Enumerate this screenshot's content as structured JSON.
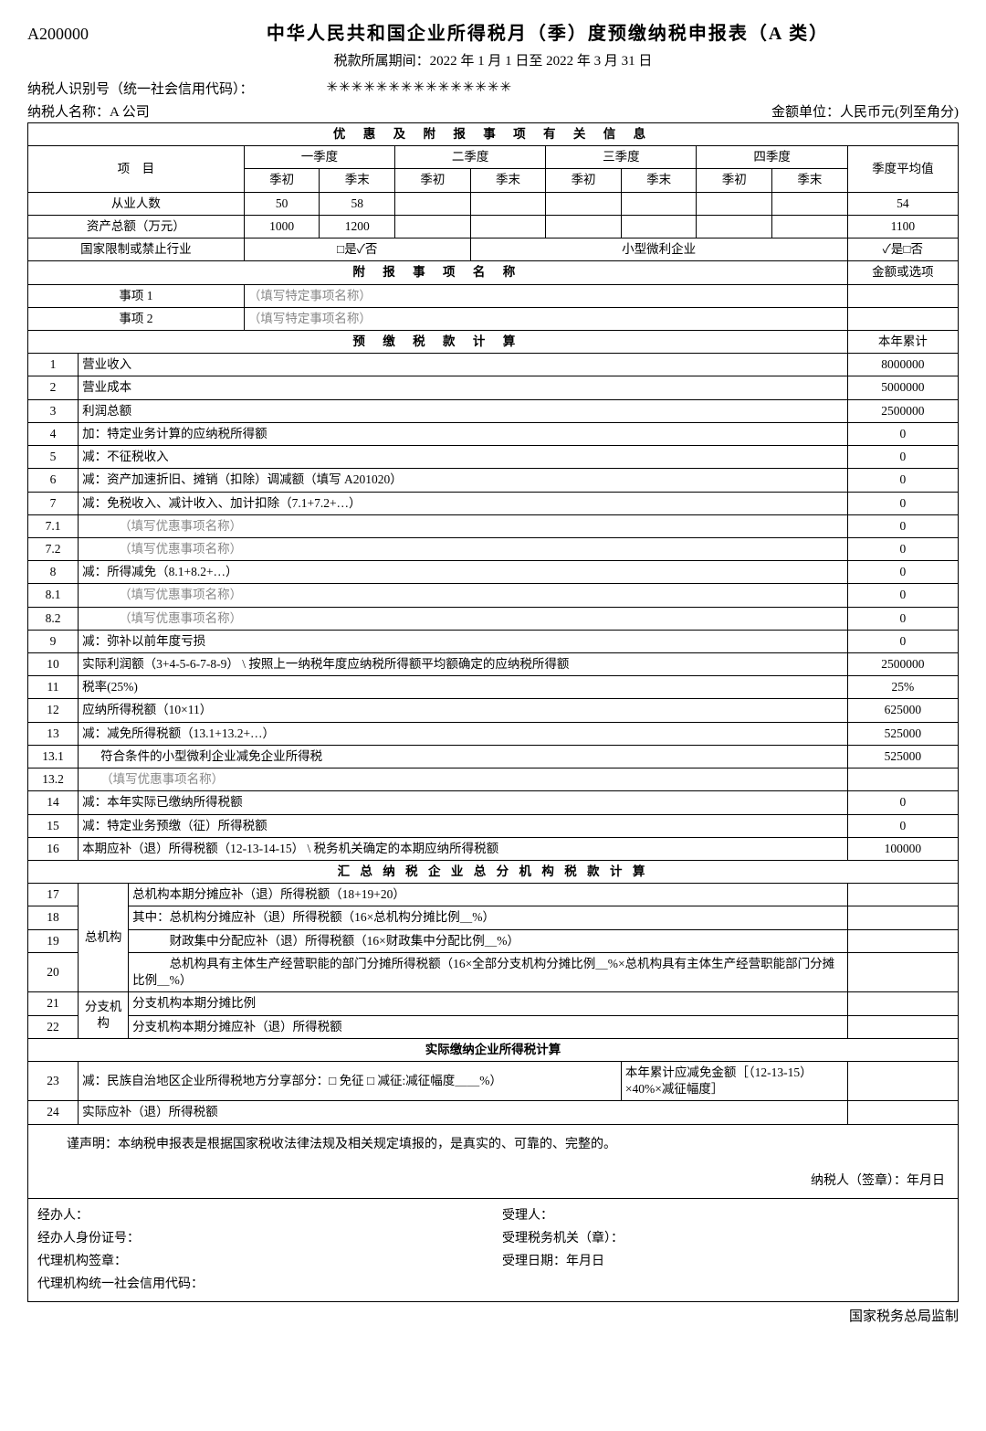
{
  "form_code": "A200000",
  "title": "中华人民共和国企业所得税月（季）度预缴纳税申报表（A 类）",
  "period": "税款所属期间：2022 年 1 月 1 日至 2022 年 3 月 31 日",
  "taxpayer_id_label": "纳税人识别号（统一社会信用代码）：",
  "taxpayer_id_stars": "✳✳✳✳✳✳✳✳✳✳✳✳✳✳✳",
  "taxpayer_name_label": "纳税人名称：A 公司",
  "amount_unit": "金额单位：人民币元(列至角分)",
  "section1_title": "优 惠 及 附 报 事 项 有 关 信 息",
  "headers": {
    "project": "项　目",
    "q1": "一季度",
    "q2": "二季度",
    "q3": "三季度",
    "q4": "四季度",
    "avg": "季度平均值",
    "qstart": "季初",
    "qend": "季末"
  },
  "rows_top": {
    "employees": {
      "label": "从业人数",
      "q1s": "50",
      "q1e": "58",
      "avg": "54"
    },
    "assets": {
      "label": "资产总额（万元）",
      "q1s": "1000",
      "q1e": "1200",
      "avg": "1100"
    },
    "restricted": {
      "label": "国家限制或禁止行业",
      "val": "□是✓否",
      "small_label": "小型微利企业",
      "small_val": "✓是□否"
    }
  },
  "attach_header": "附 报 事 项 名 称",
  "attach_amount": "金额或选项",
  "attach1_label": "事项 1",
  "attach2_label": "事项 2",
  "attach_placeholder": "（填写特定事项名称）",
  "calc_header": "预 缴 税 款 计 算",
  "ytd": "本年累计",
  "calc_rows": [
    {
      "n": "1",
      "label": "营业收入",
      "v": "8000000"
    },
    {
      "n": "2",
      "label": "营业成本",
      "v": "5000000"
    },
    {
      "n": "3",
      "label": "利润总额",
      "v": "2500000"
    },
    {
      "n": "4",
      "label": "加：特定业务计算的应纳税所得额",
      "v": "0"
    },
    {
      "n": "5",
      "label": "减：不征税收入",
      "v": "0"
    },
    {
      "n": "6",
      "label": "减：资产加速折旧、摊销（扣除）调减额（填写 A201020）",
      "v": "0"
    },
    {
      "n": "7",
      "label": "减：免税收入、减计收入、加计扣除（7.1+7.2+…）",
      "v": "0"
    },
    {
      "n": "7.1",
      "label": "（填写优惠事项名称）",
      "v": "0",
      "ph": true,
      "indent": 2
    },
    {
      "n": "7.2",
      "label": "（填写优惠事项名称）",
      "v": "0",
      "ph": true,
      "indent": 2
    },
    {
      "n": "8",
      "label": "减：所得减免（8.1+8.2+…）",
      "v": "0"
    },
    {
      "n": "8.1",
      "label": "（填写优惠事项名称）",
      "v": "0",
      "ph": true,
      "indent": 2
    },
    {
      "n": "8.2",
      "label": "（填写优惠事项名称）",
      "v": "0",
      "ph": true,
      "indent": 2
    },
    {
      "n": "9",
      "label": "减：弥补以前年度亏损",
      "v": "0"
    },
    {
      "n": "10",
      "label": "实际利润额（3+4-5-6-7-8-9） \\ 按照上一纳税年度应纳税所得额平均额确定的应纳税所得额",
      "v": "2500000"
    },
    {
      "n": "11",
      "label": "税率(25%)",
      "v": "25%"
    },
    {
      "n": "12",
      "label": "应纳所得税额（10×11）",
      "v": "625000"
    },
    {
      "n": "13",
      "label": "减：减免所得税额（13.1+13.2+…）",
      "v": "525000"
    },
    {
      "n": "13.1",
      "label": "符合条件的小型微利企业减免企业所得税",
      "v": "525000",
      "indent": 1
    },
    {
      "n": "13.2",
      "label": "（填写优惠事项名称）",
      "v": "",
      "ph": true,
      "indent": 1
    },
    {
      "n": "14",
      "label": "减：本年实际已缴纳所得税额",
      "v": "0"
    },
    {
      "n": "15",
      "label": "减：特定业务预缴（征）所得税额",
      "v": "0"
    },
    {
      "n": "16",
      "label": "本期应补（退）所得税额（12-13-14-15） \\ 税务机关确定的本期应纳所得税额",
      "v": "100000"
    }
  ],
  "branch_header": "汇 总 纳 税 企 业 总 分 机 构 税 款 计 算",
  "branch": {
    "hq": "总机构",
    "br": "分支机构",
    "r17": {
      "n": "17",
      "label": "总机构本期分摊应补（退）所得税额（18+19+20）"
    },
    "r18": {
      "n": "18",
      "label": "其中：总机构分摊应补（退）所得税额（16×总机构分摊比例＿%）"
    },
    "r19": {
      "n": "19",
      "label": "　　　财政集中分配应补（退）所得税额（16×财政集中分配比例＿%）"
    },
    "r20": {
      "n": "20",
      "label": "　　　总机构具有主体生产经营职能的部门分摊所得税额（16×全部分支机构分摊比例＿%×总机构具有主体生产经营职能部门分摊比例＿%）"
    },
    "r21": {
      "n": "21",
      "label": "分支机构本期分摊比例"
    },
    "r22": {
      "n": "22",
      "label": "分支机构本期分摊应补（退）所得税额"
    }
  },
  "actual_header": "实际缴纳企业所得税计算",
  "r23": {
    "n": "23",
    "label": "减：民族自治地区企业所得税地方分享部分：□ 免征 □ 减征:减征幅度＿＿%）",
    "right": "本年累计应减免金额［（12-13-15）×40%×减征幅度］"
  },
  "r24": {
    "n": "24",
    "label": "实际应补（退）所得税额"
  },
  "declaration": "谨声明：本纳税申报表是根据国家税收法律法规及相关规定填报的，是真实的、可靠的、完整的。",
  "sign": "纳税人（签章）：年月日",
  "footer": {
    "agent": "经办人：",
    "agent_id": "经办人身份证号：",
    "agency_seal": "代理机构签章：",
    "agency_code": "代理机构统一社会信用代码：",
    "receiver": "受理人：",
    "receive_org": "受理税务机关（章）：",
    "receive_date": "受理日期：年月日"
  },
  "supervise": "国家税务总局监制"
}
